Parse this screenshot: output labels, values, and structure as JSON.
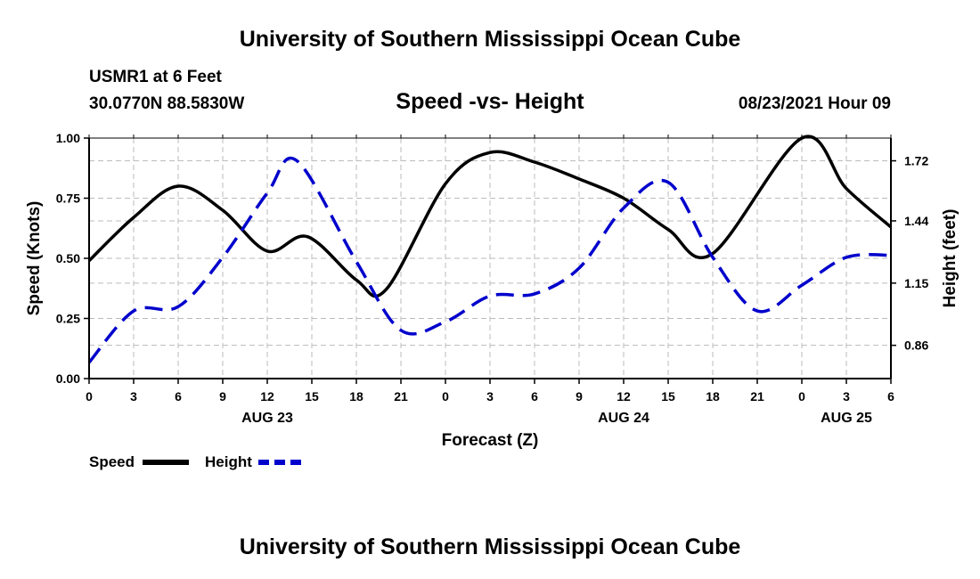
{
  "header": {
    "title": "University of Southern Mississippi Ocean Cube",
    "station": "USMR1 at 6 Feet",
    "coords": "30.0770N  88.5830W",
    "subtitle": "Speed -vs- Height",
    "datetime": "08/23/2021 Hour 09"
  },
  "footer": {
    "title": "University of Southern Mississippi Ocean Cube"
  },
  "legend": {
    "speed_label": "Speed",
    "height_label": "Height"
  },
  "colors": {
    "speed": "#000000",
    "height": "#0000cc",
    "grid": "#bbbbbb"
  },
  "chart_data": {
    "type": "line",
    "title": "Speed -vs- Height",
    "xlabel": "Forecast (Z)",
    "ylabel": "Speed (Knots)",
    "y2label": "Height (feet)",
    "xlim": [
      0,
      54
    ],
    "ylim": [
      0,
      1
    ],
    "y2lim": [
      0.705,
      1.826
    ],
    "x_ticks": [
      0,
      3,
      6,
      9,
      12,
      15,
      18,
      21,
      24,
      27,
      30,
      33,
      36,
      39,
      42,
      45,
      48,
      51,
      54
    ],
    "x_tick_labels": [
      "0",
      "3",
      "6",
      "9",
      "12",
      "15",
      "18",
      "21",
      "0",
      "3",
      "6",
      "9",
      "12",
      "15",
      "18",
      "21",
      "0",
      "3",
      "6"
    ],
    "date_labels": [
      {
        "x": 12,
        "label": "AUG 23"
      },
      {
        "x": 36,
        "label": "AUG 24"
      },
      {
        "x": 51,
        "label": "AUG 25"
      }
    ],
    "y_ticks": [
      0,
      0.25,
      0.5,
      0.75,
      1.0
    ],
    "y_tick_labels": [
      "0.00",
      "0.25",
      "0.50",
      "0.75",
      "1.00"
    ],
    "y2_ticks": [
      0.86,
      1.15,
      1.44,
      1.72
    ],
    "y2_tick_labels": [
      "0.86",
      "1.15",
      "1.44",
      "1.72"
    ],
    "grid": true,
    "series": [
      {
        "name": "Speed",
        "axis": "left",
        "style": "solid",
        "x": [
          0,
          3,
          6,
          9,
          12,
          14.7,
          18,
          20,
          24,
          27,
          30,
          33,
          36,
          39,
          42,
          48,
          51,
          54
        ],
        "y": [
          0.49,
          0.67,
          0.8,
          0.7,
          0.53,
          0.59,
          0.41,
          0.37,
          0.81,
          0.94,
          0.9,
          0.83,
          0.75,
          0.62,
          0.52,
          1.0,
          0.79,
          0.63
        ]
      },
      {
        "name": "Height",
        "axis": "right",
        "style": "dashed",
        "x": [
          0,
          3,
          6,
          9,
          12,
          14,
          18,
          21,
          24,
          27,
          30,
          33,
          36,
          39,
          42,
          45,
          48,
          51,
          54
        ],
        "y": [
          0.78,
          1.02,
          1.04,
          1.27,
          1.57,
          1.72,
          1.25,
          0.93,
          0.97,
          1.09,
          1.1,
          1.22,
          1.5,
          1.62,
          1.27,
          1.02,
          1.14,
          1.27,
          1.28
        ]
      }
    ]
  }
}
